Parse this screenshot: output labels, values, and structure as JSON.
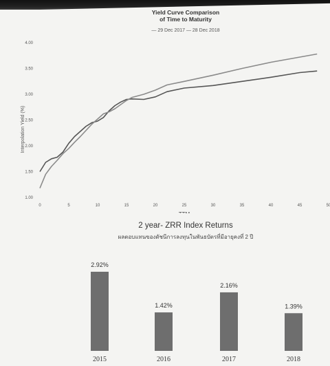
{
  "chart_data": [
    {
      "type": "line",
      "title": "Yield Curve Comparison",
      "subtitle": "of Time to Maturity",
      "xlabel": "TTM",
      "ylabel": "Interpolation Yield (%)",
      "xlim": [
        0,
        50
      ],
      "ylim": [
        1.0,
        4.0
      ],
      "x_ticks": [
        "0",
        "5",
        "10",
        "15",
        "20",
        "25",
        "30",
        "35",
        "40",
        "45",
        "50"
      ],
      "y_ticks": [
        "1.00",
        "1.50",
        "2.00",
        "2.50",
        "3.00",
        "3.50",
        "4.00"
      ],
      "legend_text": "— 29 Dec 2017  — 28 Dec 2018",
      "series": [
        {
          "name": "29 Dec 2017",
          "x": [
            0,
            1,
            2,
            3,
            4,
            5,
            6,
            7,
            8,
            9,
            10,
            11,
            12,
            13,
            14,
            15,
            16,
            18,
            20,
            22,
            25,
            30,
            35,
            40,
            45,
            48
          ],
          "values": [
            1.5,
            1.68,
            1.75,
            1.78,
            1.88,
            2.05,
            2.18,
            2.28,
            2.38,
            2.45,
            2.48,
            2.55,
            2.68,
            2.78,
            2.85,
            2.9,
            2.91,
            2.9,
            2.95,
            3.05,
            3.12,
            3.17,
            3.25,
            3.33,
            3.42,
            3.45
          ]
        },
        {
          "name": "28 Dec 2018",
          "x": [
            0,
            1,
            2,
            3,
            4,
            5,
            6,
            7,
            8,
            9,
            10,
            11,
            12,
            13,
            14,
            15,
            16,
            18,
            20,
            22,
            25,
            30,
            35,
            40,
            45,
            48
          ],
          "values": [
            1.18,
            1.45,
            1.6,
            1.72,
            1.85,
            1.95,
            2.07,
            2.18,
            2.3,
            2.42,
            2.52,
            2.62,
            2.66,
            2.72,
            2.8,
            2.88,
            2.94,
            3.0,
            3.08,
            3.18,
            3.25,
            3.37,
            3.5,
            3.62,
            3.72,
            3.78
          ]
        }
      ],
      "colors": [
        "#555555",
        "#8a8a8a"
      ]
    },
    {
      "type": "bar",
      "title": "2 year- ZRR Index Returns",
      "subtitle": "ผลตอบแทนของดัชนีการลงทุนในพันธบัตรที่มีอายุคงที่ 2 ปี",
      "categories": [
        "2015",
        "2016",
        "2017",
        "2018"
      ],
      "values": [
        2.92,
        1.42,
        2.16,
        1.39
      ],
      "value_labels": [
        "2.92%",
        "1.42%",
        "2.16%",
        "1.39%"
      ],
      "ylim": [
        0,
        3.2
      ],
      "bar_color": "#6e6e6e"
    }
  ]
}
